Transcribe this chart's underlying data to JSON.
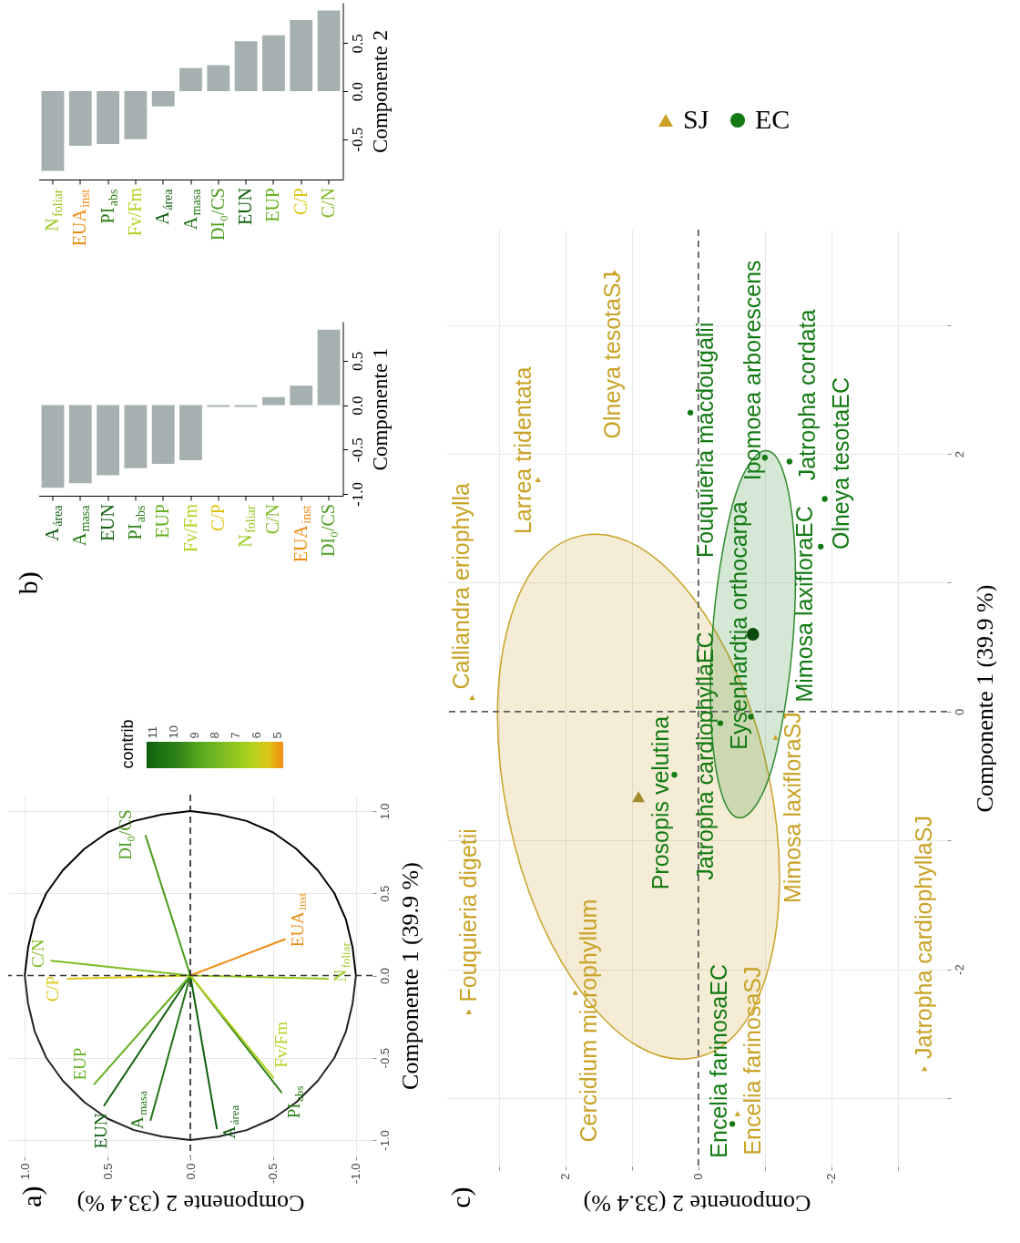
{
  "chart_data": [
    {
      "type": "bar",
      "ylabel": "Componente 2",
      "categories": [
        "N$_{foliar}$",
        "EUA$_{inst}$",
        "PI$_{abs}$",
        "Fv/Fm",
        "A$_{área}$",
        "A$_{masa}$",
        "DI₀/CS",
        "EUN",
        "EUP",
        "C/P",
        "C/N"
      ],
      "values": [
        -0.83,
        -0.57,
        -0.55,
        -0.5,
        -0.16,
        0.24,
        0.27,
        0.52,
        0.58,
        0.74,
        0.84
      ],
      "color": "#a5b0b0",
      "ylim": [
        -0.92,
        0.92
      ],
      "yticks": [
        {
          "value": -0.5,
          "label": "-0.5"
        },
        {
          "value": 0,
          "label": "0.0"
        },
        {
          "value": 0.5,
          "label": "0.5"
        }
      ]
    },
    {
      "type": "bar",
      "title": "b)",
      "ylabel": "Componente 1",
      "categories": [
        "A$_{área}$",
        "A$_{masa}$",
        "EUN",
        "PI$_{abs}$",
        "EUP",
        "Fv/Fm",
        "C/P",
        "N$_{foliar}$",
        "C/N",
        "EUA$_{inst}$",
        "DI₀/CS"
      ],
      "values": [
        -0.93,
        -0.88,
        -0.79,
        -0.71,
        -0.66,
        -0.62,
        -0.02,
        -0.02,
        0.09,
        0.22,
        0.85
      ],
      "color": "#a5b0b0",
      "ylim": [
        -1.02,
        0.94
      ],
      "yticks": [
        {
          "value": -1,
          "label": "-1.0"
        },
        {
          "value": -0.5,
          "label": "-0.5"
        },
        {
          "value": 0,
          "label": "0.0"
        },
        {
          "value": 0.5,
          "label": "0.5"
        }
      ]
    },
    {
      "type": "line",
      "title": "a)",
      "xlabel": "Componente 2 (33.4 %)",
      "ylabel": "Componente 1 (39.9 %)",
      "clabel": "contrib",
      "clim": [
        4.7,
        11.3
      ],
      "cticks": [
        5,
        6,
        7,
        8,
        9,
        10,
        11
      ],
      "xlim": [
        1.1,
        -1.1
      ],
      "ylim": [
        -1.1,
        1.1
      ],
      "xticks": [
        {
          "value": 1,
          "label": "1.0"
        },
        {
          "value": 0.5,
          "label": "0.5"
        },
        {
          "value": 0,
          "label": "0.0"
        },
        {
          "value": -0.5,
          "label": "-0.5"
        },
        {
          "value": -1,
          "label": "-1.0"
        }
      ],
      "yticks": [
        {
          "value": -1,
          "label": "-1.0"
        },
        {
          "value": -0.5,
          "label": "-0.5"
        },
        {
          "value": 0,
          "label": "0.0"
        },
        {
          "value": 0.5,
          "label": "0.5"
        },
        {
          "value": 1,
          "label": "1.0"
        }
      ],
      "grid": true,
      "ref_lines": [
        {
          "axis": "x",
          "value": 0,
          "line_style": "dashed",
          "color": "#1a1a1a"
        },
        {
          "axis": "y",
          "value": 0,
          "line_style": "dashed",
          "color": "#333333"
        }
      ],
      "series": [
        {
          "type": "line",
          "color": "#000000",
          "x": [
            1,
            0.98,
            0.94,
            0.87,
            0.77,
            0.64,
            0.5,
            0.34,
            0.17,
            0,
            -0.17,
            -0.34,
            -0.5,
            -0.64,
            -0.77,
            -0.87,
            -0.94,
            -0.98,
            -1
          ],
          "values": [
            0,
            0.17,
            0.34,
            0.5,
            0.64,
            0.77,
            0.87,
            0.94,
            0.98,
            1,
            0.98,
            0.94,
            0.87,
            0.77,
            0.64,
            0.5,
            0.34,
            0.17,
            0
          ]
        },
        {
          "type": "line",
          "color": "#222222",
          "x": [
            -1,
            -0.98,
            -0.94,
            -0.87,
            -0.77,
            -0.64,
            -0.5,
            -0.34,
            -0.17,
            0,
            0.17,
            0.34,
            0.5,
            0.64,
            0.77,
            0.87,
            0.94,
            0.98,
            1
          ],
          "values": [
            0,
            -0.17,
            -0.34,
            -0.5,
            -0.64,
            -0.77,
            -0.87,
            -0.94,
            -0.98,
            -1,
            -0.98,
            -0.94,
            -0.87,
            -0.77,
            -0.64,
            -0.5,
            -0.34,
            -0.17,
            0
          ]
        },
        {
          "name": "A$_{área}$",
          "color": "#0e5f0e",
          "x": [
            0,
            -0.16
          ],
          "values": [
            0,
            -0.93
          ]
        },
        {
          "name": "A$_{masa}$",
          "color": "#1f7512",
          "x": [
            0,
            0.24
          ],
          "values": [
            0,
            -0.88
          ]
        },
        {
          "name": "EUN",
          "color": "#0e5f0e",
          "x": [
            0,
            0.52
          ],
          "values": [
            0,
            -0.79
          ]
        },
        {
          "name": "PI$_{abs}$",
          "color": "#2c8016",
          "x": [
            0,
            -0.55
          ],
          "values": [
            0,
            -0.71
          ]
        },
        {
          "name": "EUP",
          "color": "#64b021",
          "x": [
            0,
            0.58
          ],
          "values": [
            0,
            -0.66
          ]
        },
        {
          "name": "Fv/Fm",
          "color": "#b3d21f",
          "x": [
            0,
            -0.5
          ],
          "values": [
            0,
            -0.62
          ]
        },
        {
          "name": "C/P",
          "color": "#dcc614",
          "x": [
            0,
            0.74
          ],
          "values": [
            0,
            -0.02
          ]
        },
        {
          "name": "N$_{foliar}$",
          "color": "#97c820",
          "x": [
            0,
            -0.83
          ],
          "values": [
            0,
            -0.02
          ]
        },
        {
          "name": "C/N",
          "color": "#7dbb22",
          "x": [
            0,
            0.84
          ],
          "values": [
            0,
            0.09
          ]
        },
        {
          "name": "EUA$_{inst}$",
          "color": "#ef8a10",
          "x": [
            0,
            -0.57
          ],
          "values": [
            0,
            0.22
          ]
        },
        {
          "name": "DI₀/CS",
          "color": "#4a9c1c",
          "x": [
            0,
            0.27
          ],
          "values": [
            0,
            0.85
          ]
        }
      ]
    },
    {
      "type": "scatter",
      "title": "c)",
      "xlabel": "Componente 2 (33.4 %)",
      "ylabel": "Componente 1 (39.9 %)",
      "xlim": [
        3.79,
        -3.74
      ],
      "ylim": [
        -3.53,
        3.74
      ],
      "xticks": [
        {
          "value": 3,
          "label": null
        },
        2,
        {
          "value": 1,
          "label": null
        },
        0,
        {
          "value": -1,
          "label": null
        },
        -2,
        {
          "value": -3,
          "label": null
        }
      ],
      "yticks": [
        {
          "value": -3,
          "label": null
        },
        -2,
        {
          "value": -1,
          "label": null
        },
        0,
        {
          "value": 1,
          "label": null
        },
        2,
        {
          "value": 3,
          "label": null
        }
      ],
      "grid": true,
      "legend": "top",
      "ref_lines": [
        {
          "axis": "x",
          "value": 0,
          "line_style": "dashed",
          "color": "#4d4d4d"
        },
        {
          "axis": "y",
          "value": 0,
          "line_style": "dashed",
          "color": "#5c5c5c"
        }
      ],
      "series": [
        {
          "type": "area",
          "color": "#c9a227",
          "x": [
            -1.22,
            -1.06,
            -0.6,
            0.09,
            0.9,
            1.71,
            2.4,
            2.86,
            3.02,
            2.86,
            2.4,
            1.71,
            0.9,
            0.09,
            -0.6,
            -1.06
          ],
          "values": [
            -1.29,
            -1.98,
            -2.48,
            -2.69,
            -2.6,
            -2.21,
            -1.59,
            -0.82,
            -0.03,
            0.66,
            1.16,
            1.37,
            1.28,
            0.89,
            0.27,
            -0.5
          ]
        },
        {
          "type": "area",
          "color": "#2e8b2e",
          "x": [
            -1.46,
            -1.41,
            -1.27,
            -1.07,
            -0.82,
            -0.57,
            -0.37,
            -0.23,
            -0.18,
            -0.23,
            -0.37,
            -0.57,
            -0.82,
            -1.07,
            -1.27,
            -1.41
          ],
          "values": [
            1.03,
            0.48,
            -0.06,
            -0.5,
            -0.76,
            -0.82,
            -0.67,
            -0.32,
            0.17,
            0.72,
            1.26,
            1.7,
            1.96,
            2.02,
            1.87,
            1.52
          ]
        },
        {
          "name": "SJ",
          "type": "scatter",
          "marker": "triangle",
          "color": "#c9a227",
          "x": [
            3.4,
            2.41,
            1.26,
            3.45,
            1.85,
            -0.59,
            -3.4,
            -1.16
          ],
          "values": [
            0.11,
            1.8,
            3.41,
            -2.33,
            -2.18,
            -3.12,
            -2.77,
            -0.2
          ],
          "value_labels": [
            "Calliandra eriophylla",
            "Larrea tridentata",
            "Olneya tesotaSJ",
            "Fouquieria digetii",
            "Cercidium microphyllum",
            "Encelia farinosaSJ",
            "Jatropha cardiophyllaSJ",
            "Mimosa laxifloraSJ"
          ]
        },
        {
          "name": "EC",
          "type": "scatter",
          "marker": "circle",
          "color": "#137a13",
          "x": [
            0.36,
            -0.33,
            -0.79,
            -1.84,
            -1.9,
            -1.37,
            -1.0,
            0.12,
            -0.51
          ],
          "values": [
            -0.49,
            -0.09,
            -0.04,
            1.28,
            1.65,
            1.94,
            1.97,
            2.32,
            -3.2
          ],
          "value_labels": [
            "Prosopis velutina",
            "Jatropha cardiophyllaEC",
            "Eysenhardtia orthocarpa",
            "Mimosa laxifloraEC",
            "Olneya tesotaEC",
            "Jatropha cordata",
            "Ipomoea arborescens",
            "Fouquieria macdougalii",
            "Encelia farinosaEC"
          ]
        },
        {
          "type": "scatter",
          "marker": "triangle",
          "color": "#a08a2e",
          "x": [
            0.9
          ],
          "values": [
            -0.66
          ]
        },
        {
          "type": "scatter",
          "marker": "circle",
          "color": "#0a4a0a",
          "x": [
            -0.82
          ],
          "values": [
            0.6
          ]
        }
      ]
    }
  ]
}
